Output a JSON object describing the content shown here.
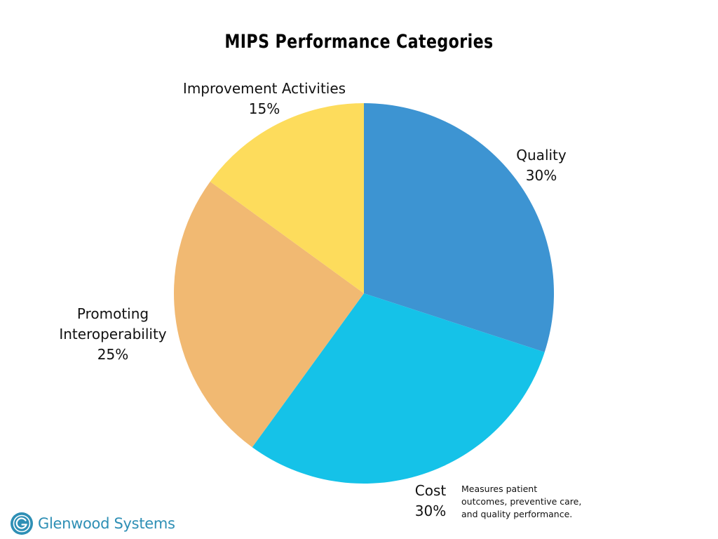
{
  "chart_data": {
    "type": "pie",
    "title": "MIPS Performance Categories",
    "slices": [
      {
        "name": "Quality",
        "label_lines": [
          "Quality"
        ],
        "value": 30,
        "value_label": "30%",
        "color": "#3d94d2"
      },
      {
        "name": "Cost",
        "label_lines": [
          "Cost"
        ],
        "value": 30,
        "value_label": "30%",
        "color": "#15c2e8"
      },
      {
        "name": "Promoting Interoperability",
        "label_lines": [
          "Promoting",
          "Interoperability"
        ],
        "value": 25,
        "value_label": "25%",
        "color": "#f1b972"
      },
      {
        "name": "Improvement Activities",
        "label_lines": [
          "Improvement Activities"
        ],
        "value": 15,
        "value_label": "15%",
        "color": "#fddc5c"
      }
    ],
    "start": "12 o'clock",
    "direction": "clockwise",
    "annotation": [
      "Measures patient",
      "outcomes, preventive care,",
      "and quality performance."
    ]
  },
  "brand": {
    "name": "Glenwood Systems",
    "logo_icon": "circled-g-icon",
    "color": "#2e8fb5"
  }
}
